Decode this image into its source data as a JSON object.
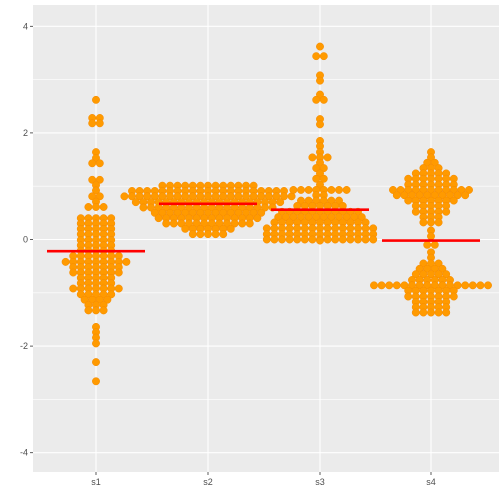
{
  "chart_data": {
    "type": "scatter",
    "subtype": "dotplot",
    "title": "",
    "xlabel": "",
    "ylabel": "",
    "categories": [
      "s1",
      "s2",
      "s3",
      "s4"
    ],
    "ylim": [
      -4.4,
      4.3
    ],
    "yticks": [
      "-4",
      "-2",
      "0",
      "2",
      "4"
    ],
    "grid": true,
    "colors": {
      "panel": "#ebebeb",
      "grid": "#ffffff",
      "point": "#ff9a00",
      "point_edge": "#f58a00",
      "median": "#ff0000"
    },
    "medians": [
      -0.22,
      0.67,
      0.56,
      -0.02
    ],
    "series": [
      {
        "category": "s1",
        "values": [
          2.62,
          2.28,
          2.28,
          2.18,
          2.18,
          1.64,
          1.53,
          1.43,
          1.43,
          1.12,
          1.12,
          1.02,
          0.92,
          0.81,
          0.81,
          0.71,
          0.61,
          0.61,
          0.61,
          0.4,
          0.4,
          0.4,
          0.4,
          0.4,
          0.3,
          0.3,
          0.3,
          0.3,
          0.3,
          0.2,
          0.2,
          0.2,
          0.2,
          0.2,
          0.1,
          0.1,
          0.1,
          0.1,
          0.1,
          -0.01,
          -0.01,
          -0.01,
          -0.01,
          -0.01,
          -0.11,
          -0.11,
          -0.11,
          -0.11,
          -0.11,
          -0.21,
          -0.21,
          -0.21,
          -0.21,
          -0.21,
          -0.31,
          -0.31,
          -0.31,
          -0.31,
          -0.31,
          -0.31,
          -0.31,
          -0.42,
          -0.42,
          -0.42,
          -0.42,
          -0.42,
          -0.42,
          -0.42,
          -0.42,
          -0.42,
          -0.52,
          -0.52,
          -0.52,
          -0.52,
          -0.52,
          -0.52,
          -0.52,
          -0.62,
          -0.62,
          -0.62,
          -0.62,
          -0.62,
          -0.62,
          -0.62,
          -0.72,
          -0.72,
          -0.72,
          -0.72,
          -0.72,
          -0.82,
          -0.82,
          -0.82,
          -0.82,
          -0.82,
          -0.92,
          -0.92,
          -0.92,
          -0.92,
          -0.92,
          -0.92,
          -0.92,
          -1.03,
          -1.03,
          -1.03,
          -1.03,
          -1.03,
          -1.13,
          -1.13,
          -1.13,
          -1.13,
          -1.23,
          -1.23,
          -1.23,
          -1.33,
          -1.33,
          -1.33,
          -1.64,
          -1.74,
          -1.84,
          -1.95,
          -2.3,
          -2.66
        ]
      },
      {
        "category": "s2",
        "values": [
          1.01,
          1.01,
          1.01,
          1.01,
          1.01,
          1.01,
          1.01,
          1.01,
          1.01,
          1.01,
          1.01,
          1.01,
          1.01,
          0.91,
          0.91,
          0.91,
          0.91,
          0.91,
          0.91,
          0.91,
          0.91,
          0.91,
          0.91,
          0.91,
          0.91,
          0.91,
          0.91,
          0.91,
          0.91,
          0.91,
          0.91,
          0.91,
          0.91,
          0.91,
          0.81,
          0.81,
          0.81,
          0.81,
          0.81,
          0.81,
          0.81,
          0.81,
          0.81,
          0.81,
          0.81,
          0.81,
          0.81,
          0.81,
          0.81,
          0.81,
          0.81,
          0.81,
          0.81,
          0.81,
          0.81,
          0.81,
          0.81,
          0.7,
          0.7,
          0.7,
          0.7,
          0.7,
          0.7,
          0.7,
          0.7,
          0.7,
          0.7,
          0.7,
          0.7,
          0.7,
          0.7,
          0.7,
          0.7,
          0.7,
          0.7,
          0.7,
          0.7,
          0.6,
          0.6,
          0.6,
          0.6,
          0.6,
          0.6,
          0.6,
          0.6,
          0.6,
          0.6,
          0.6,
          0.6,
          0.6,
          0.6,
          0.6,
          0.6,
          0.6,
          0.6,
          0.5,
          0.5,
          0.5,
          0.5,
          0.5,
          0.5,
          0.5,
          0.5,
          0.5,
          0.5,
          0.5,
          0.5,
          0.5,
          0.5,
          0.5,
          0.4,
          0.4,
          0.4,
          0.4,
          0.4,
          0.4,
          0.4,
          0.4,
          0.4,
          0.4,
          0.4,
          0.4,
          0.4,
          0.4,
          0.3,
          0.3,
          0.3,
          0.3,
          0.3,
          0.3,
          0.3,
          0.3,
          0.3,
          0.3,
          0.3,
          0.3,
          0.2,
          0.2,
          0.2,
          0.2,
          0.2,
          0.2,
          0.2,
          0.1,
          0.1,
          0.1,
          0.1,
          0.1
        ]
      },
      {
        "category": "s3",
        "values": [
          3.62,
          3.44,
          3.44,
          3.08,
          2.98,
          2.72,
          2.62,
          2.62,
          2.26,
          2.16,
          1.85,
          1.75,
          1.64,
          1.54,
          1.54,
          1.54,
          1.44,
          1.34,
          1.34,
          1.24,
          1.14,
          1.14,
          1.03,
          0.93,
          0.93,
          0.93,
          0.93,
          0.93,
          0.93,
          0.93,
          0.93,
          0.83,
          0.83,
          0.73,
          0.73,
          0.73,
          0.73,
          0.73,
          0.73,
          0.63,
          0.63,
          0.63,
          0.63,
          0.63,
          0.63,
          0.63,
          0.52,
          0.52,
          0.52,
          0.52,
          0.52,
          0.52,
          0.52,
          0.52,
          0.52,
          0.52,
          0.52,
          0.42,
          0.42,
          0.42,
          0.42,
          0.42,
          0.42,
          0.42,
          0.42,
          0.42,
          0.42,
          0.42,
          0.42,
          0.32,
          0.32,
          0.32,
          0.32,
          0.32,
          0.32,
          0.32,
          0.32,
          0.32,
          0.32,
          0.32,
          0.32,
          0.32,
          0.21,
          0.21,
          0.21,
          0.21,
          0.21,
          0.21,
          0.21,
          0.21,
          0.21,
          0.21,
          0.21,
          0.21,
          0.21,
          0.21,
          0.21,
          0.1,
          0.1,
          0.1,
          0.1,
          0.1,
          0.1,
          0.1,
          0.1,
          0.1,
          0.1,
          0.1,
          0.1,
          0.1,
          0.1,
          0.1,
          0.0,
          0.0,
          0.0,
          0.0,
          0.0,
          0.0,
          0.0,
          0.0,
          0.0,
          0.0,
          0.0,
          0.0,
          0.0,
          0.0,
          0.0,
          -0.02
        ]
      },
      {
        "category": "s4",
        "values": [
          1.64,
          1.54,
          1.44,
          1.44,
          1.34,
          1.34,
          1.34,
          1.24,
          1.24,
          1.24,
          1.24,
          1.24,
          1.14,
          1.14,
          1.14,
          1.14,
          1.14,
          1.14,
          1.14,
          1.03,
          1.03,
          1.03,
          1.03,
          1.03,
          1.03,
          1.03,
          0.93,
          0.93,
          0.93,
          0.93,
          0.93,
          0.93,
          0.93,
          0.93,
          0.93,
          0.93,
          0.93,
          0.83,
          0.83,
          0.83,
          0.83,
          0.83,
          0.83,
          0.83,
          0.83,
          0.83,
          0.83,
          0.73,
          0.73,
          0.73,
          0.73,
          0.73,
          0.73,
          0.73,
          0.63,
          0.63,
          0.63,
          0.63,
          0.63,
          0.52,
          0.52,
          0.52,
          0.52,
          0.52,
          0.42,
          0.42,
          0.42,
          0.32,
          0.32,
          0.32,
          0.17,
          0.06,
          -0.1,
          -0.1,
          -0.24,
          -0.34,
          -0.45,
          -0.45,
          -0.45,
          -0.55,
          -0.55,
          -0.55,
          -0.55,
          -0.65,
          -0.65,
          -0.65,
          -0.65,
          -0.65,
          -0.76,
          -0.76,
          -0.76,
          -0.76,
          -0.76,
          -0.76,
          -0.86,
          -0.86,
          -0.86,
          -0.86,
          -0.86,
          -0.86,
          -0.86,
          -0.86,
          -0.86,
          -0.86,
          -0.86,
          -0.86,
          -0.86,
          -0.86,
          -0.86,
          -0.86,
          -0.96,
          -0.96,
          -0.96,
          -0.96,
          -0.96,
          -0.96,
          -0.96,
          -1.07,
          -1.07,
          -1.07,
          -1.07,
          -1.07,
          -1.07,
          -1.07,
          -1.17,
          -1.17,
          -1.17,
          -1.17,
          -1.17,
          -1.27,
          -1.27,
          -1.27,
          -1.27,
          -1.27,
          -1.37,
          -1.37,
          -1.37,
          -1.37,
          -1.37
        ]
      }
    ]
  }
}
